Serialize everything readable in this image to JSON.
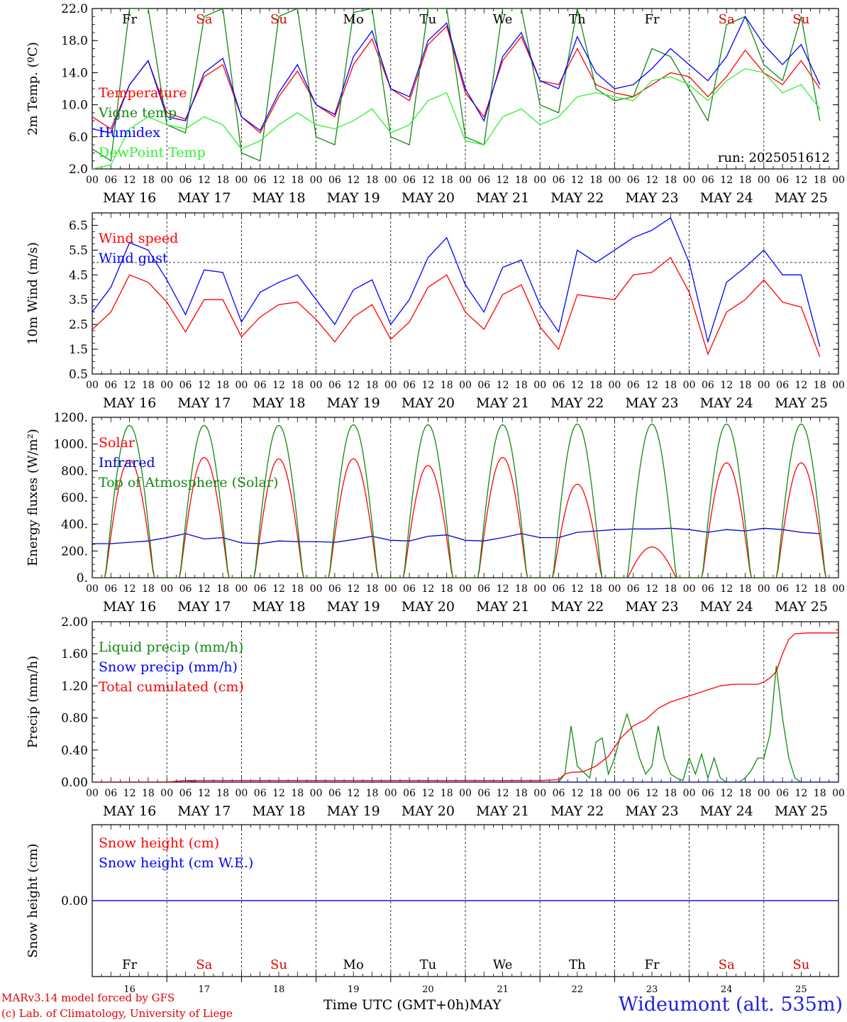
{
  "chart_data": [
    {
      "id": "temp",
      "type": "line",
      "ylabel": "2m Temp. (ºC)",
      "yticks": [
        2.0,
        6.0,
        10.0,
        14.0,
        18.0,
        22.0
      ],
      "ytick_labels": [
        "2.0",
        "6.0",
        "10.0",
        "14.0",
        "18.0",
        "22.0"
      ],
      "ylim": [
        2.0,
        22.0
      ],
      "annotation": "run: 2025051612",
      "day_labels_top": [
        "Fr",
        "Sa",
        "Su",
        "Mo",
        "Tu",
        "We",
        "Th",
        "Fr",
        "Sa",
        "Su"
      ],
      "series": [
        {
          "name": "Temperature",
          "color": "#ff0000",
          "x": [
            0,
            6,
            12,
            18,
            24,
            30,
            36,
            42,
            48,
            54,
            60,
            66,
            72,
            78,
            84,
            90,
            96,
            102,
            108,
            114,
            120,
            126,
            132,
            138,
            144,
            150,
            156,
            162,
            168,
            174,
            180,
            186,
            192,
            198,
            204,
            210,
            216,
            222,
            228,
            234
          ],
          "values": [
            8.5,
            7.0,
            12.5,
            15.5,
            9.0,
            8.2,
            13.5,
            15.0,
            8.5,
            6.5,
            11.0,
            14.2,
            10.0,
            8.5,
            15.0,
            18.2,
            12.0,
            10.5,
            17.5,
            19.8,
            11.5,
            8.5,
            15.5,
            18.5,
            13.0,
            12.5,
            17.0,
            12.5,
            11.5,
            11.0,
            12.5,
            14.0,
            13.5,
            11.0,
            13.5,
            16.8,
            14.0,
            12.5,
            15.5,
            12.0
          ]
        },
        {
          "name": "Vigne temp",
          "color": "#118811",
          "x": [
            0,
            6,
            12,
            18,
            24,
            30,
            36,
            42,
            48,
            54,
            60,
            66,
            72,
            78,
            84,
            90,
            96,
            102,
            108,
            114,
            120,
            126,
            132,
            138,
            144,
            150,
            156,
            162,
            168,
            174,
            180,
            186,
            192,
            198,
            204,
            210,
            216,
            222,
            228,
            234
          ],
          "values": [
            4.5,
            3.0,
            22.0,
            22.0,
            7.5,
            6.5,
            21.0,
            22.0,
            4.0,
            3.0,
            21.0,
            22.0,
            6.0,
            5.0,
            21.5,
            22.0,
            6.0,
            5.0,
            22.0,
            22.0,
            6.0,
            5.0,
            22.0,
            22.0,
            10.0,
            9.0,
            22.0,
            12.0,
            10.5,
            11.0,
            17.0,
            16.0,
            12.0,
            8.0,
            20.0,
            21.0,
            15.0,
            13.0,
            21.0,
            8.0
          ]
        },
        {
          "name": "Humidex",
          "color": "#0000ff",
          "x": [
            0,
            6,
            12,
            18,
            24,
            30,
            36,
            42,
            48,
            54,
            60,
            66,
            72,
            78,
            84,
            90,
            96,
            102,
            108,
            114,
            120,
            126,
            132,
            138,
            144,
            150,
            156,
            162,
            168,
            174,
            180,
            186,
            192,
            198,
            204,
            210,
            216,
            222,
            228,
            234
          ],
          "values": [
            7.0,
            6.5,
            12.5,
            15.5,
            8.5,
            8.0,
            14.0,
            15.8,
            8.5,
            6.8,
            11.5,
            15.0,
            10.0,
            8.8,
            16.0,
            19.2,
            12.0,
            11.0,
            18.0,
            20.2,
            12.0,
            8.0,
            16.0,
            19.0,
            13.0,
            12.0,
            18.5,
            14.0,
            12.0,
            12.5,
            14.5,
            17.0,
            15.0,
            13.0,
            16.0,
            21.0,
            17.5,
            15.0,
            17.5,
            12.5
          ]
        },
        {
          "name": "DewPoint Temp",
          "color": "#33ee33",
          "x": [
            0,
            6,
            12,
            18,
            24,
            30,
            36,
            42,
            48,
            54,
            60,
            66,
            72,
            78,
            84,
            90,
            96,
            102,
            108,
            114,
            120,
            126,
            132,
            138,
            144,
            150,
            156,
            162,
            168,
            174,
            180,
            186,
            192,
            198,
            204,
            210,
            216,
            222,
            228,
            234
          ],
          "values": [
            2.0,
            2.5,
            7.0,
            8.5,
            7.5,
            7.0,
            8.5,
            7.5,
            4.5,
            5.5,
            7.5,
            9.0,
            7.5,
            7.0,
            8.0,
            9.5,
            6.5,
            7.5,
            10.5,
            11.5,
            5.5,
            5.0,
            8.5,
            9.5,
            7.5,
            8.5,
            11.0,
            11.5,
            11.0,
            10.5,
            13.0,
            13.5,
            12.5,
            10.5,
            13.0,
            14.5,
            14.0,
            11.5,
            12.5,
            9.5
          ]
        }
      ]
    },
    {
      "id": "wind",
      "type": "line",
      "ylabel": "10m Wind (m/s)",
      "yticks": [
        0.5,
        1.5,
        2.5,
        3.5,
        4.5,
        5.5,
        6.5
      ],
      "ytick_labels": [
        "0.5",
        "1.5",
        "2.5",
        "3.5",
        "4.5",
        "5.5",
        "6.5"
      ],
      "ylim": [
        0.5,
        7.0
      ],
      "reference_line": 5.0,
      "series": [
        {
          "name": "Wind speed",
          "color": "#ff0000",
          "x": [
            0,
            6,
            12,
            18,
            24,
            30,
            36,
            42,
            48,
            54,
            60,
            66,
            72,
            78,
            84,
            90,
            96,
            102,
            108,
            114,
            120,
            126,
            132,
            138,
            144,
            150,
            156,
            162,
            168,
            174,
            180,
            186,
            192,
            198,
            204,
            210,
            216,
            222,
            228,
            234
          ],
          "values": [
            2.3,
            3.0,
            4.5,
            4.2,
            3.4,
            2.2,
            3.5,
            3.5,
            2.0,
            2.8,
            3.3,
            3.4,
            2.7,
            1.8,
            2.8,
            3.3,
            1.9,
            2.6,
            4.0,
            4.5,
            3.0,
            2.3,
            3.7,
            4.1,
            2.4,
            1.5,
            3.7,
            3.6,
            3.5,
            4.5,
            4.6,
            5.2,
            3.8,
            1.3,
            3.0,
            3.5,
            4.3,
            3.4,
            3.2,
            1.2
          ]
        },
        {
          "name": "Wind gust",
          "color": "#0000ff",
          "x": [
            0,
            6,
            12,
            18,
            24,
            30,
            36,
            42,
            48,
            54,
            60,
            66,
            72,
            78,
            84,
            90,
            96,
            102,
            108,
            114,
            120,
            126,
            132,
            138,
            144,
            150,
            156,
            162,
            168,
            174,
            180,
            186,
            192,
            198,
            204,
            210,
            216,
            222,
            228,
            234
          ],
          "values": [
            3.0,
            4.0,
            5.8,
            5.5,
            4.3,
            2.9,
            4.7,
            4.6,
            2.6,
            3.8,
            4.2,
            4.5,
            3.5,
            2.5,
            3.9,
            4.3,
            2.5,
            3.5,
            5.2,
            6.0,
            4.1,
            3.0,
            4.8,
            5.1,
            3.3,
            2.2,
            5.5,
            5.0,
            5.5,
            6.0,
            6.3,
            6.8,
            5.0,
            1.8,
            4.2,
            4.8,
            5.5,
            4.5,
            4.5,
            1.6
          ]
        }
      ]
    },
    {
      "id": "energy",
      "type": "line",
      "ylabel": "Energy fluxes (W/m²)",
      "yticks": [
        0,
        200,
        400,
        600,
        800,
        1000,
        1200
      ],
      "ytick_labels": [
        "0.",
        "200.",
        "400.",
        "600.",
        "800.",
        "1000.",
        "1200."
      ],
      "ylim": [
        0,
        1200
      ],
      "series": [
        {
          "name": "Solar",
          "color": "#ff0000",
          "daily_peak": [
            880,
            900,
            890,
            890,
            840,
            900,
            700,
            230,
            860,
            860
          ]
        },
        {
          "name": "Infrared",
          "color": "#0000cc",
          "x": [
            0,
            6,
            12,
            18,
            24,
            30,
            36,
            42,
            48,
            54,
            60,
            66,
            72,
            78,
            84,
            90,
            96,
            102,
            108,
            114,
            120,
            126,
            132,
            138,
            144,
            150,
            156,
            162,
            168,
            174,
            180,
            186,
            192,
            198,
            204,
            210,
            216,
            222,
            228,
            234
          ],
          "values": [
            255,
            255,
            265,
            275,
            300,
            330,
            290,
            300,
            260,
            255,
            275,
            270,
            270,
            265,
            285,
            310,
            280,
            275,
            310,
            320,
            280,
            275,
            300,
            330,
            300,
            300,
            340,
            350,
            360,
            365,
            365,
            370,
            360,
            340,
            360,
            350,
            370,
            360,
            340,
            330
          ]
        },
        {
          "name": "Top of Atmosphere (Solar)",
          "color": "#118811",
          "daily_peak": [
            1140,
            1140,
            1140,
            1145,
            1145,
            1145,
            1150,
            1150,
            1150,
            1150
          ]
        }
      ]
    },
    {
      "id": "precip",
      "type": "line",
      "ylabel": "Precip (mm/h)",
      "yticks": [
        0,
        0.4,
        0.8,
        1.2,
        1.6,
        2.0
      ],
      "ytick_labels": [
        "0.00",
        "0.40",
        "0.80",
        "1.20",
        "1.60",
        "2.00"
      ],
      "ylim": [
        0,
        2.0
      ],
      "series": [
        {
          "name": "Liquid precip (mm/h)",
          "color": "#118811",
          "x": [
            0,
            24,
            30,
            34,
            48,
            144,
            150,
            152,
            154,
            156,
            160,
            162,
            164,
            166,
            168,
            170,
            172,
            174,
            176,
            178,
            180,
            182,
            184,
            186,
            188,
            190,
            192,
            194,
            196,
            198,
            200,
            202,
            204,
            206,
            208,
            210,
            212,
            214,
            216,
            218,
            220,
            222,
            224,
            226,
            228,
            230,
            240
          ],
          "values": [
            0,
            0,
            0.02,
            0,
            0,
            0,
            0,
            0.1,
            0.7,
            0.2,
            0.05,
            0.5,
            0.55,
            0.1,
            0.3,
            0.6,
            0.85,
            0.6,
            0.3,
            0.1,
            0.2,
            0.7,
            0.3,
            0.1,
            0.05,
            0.02,
            0.3,
            0.1,
            0.35,
            0.05,
            0.3,
            0.05,
            0,
            0,
            0,
            0.05,
            0.15,
            0.3,
            0.3,
            0.6,
            1.45,
            0.8,
            0.3,
            0.05,
            0,
            0,
            0
          ]
        },
        {
          "name": "Snow precip (mm/h)",
          "color": "#0000ff",
          "x": [
            0,
            240
          ],
          "values": [
            0,
            0
          ]
        },
        {
          "name": "Total cumulated (cm)",
          "color": "#ff0000",
          "x": [
            0,
            24,
            30,
            36,
            48,
            144,
            150,
            152,
            154,
            158,
            162,
            166,
            170,
            174,
            178,
            182,
            186,
            190,
            194,
            198,
            202,
            206,
            210,
            214,
            216,
            218,
            220,
            222,
            224,
            226,
            230,
            240
          ],
          "values": [
            0,
            0,
            0.02,
            0.02,
            0.02,
            0.02,
            0.03,
            0.1,
            0.12,
            0.13,
            0.2,
            0.32,
            0.55,
            0.7,
            0.78,
            0.92,
            1.0,
            1.05,
            1.1,
            1.15,
            1.2,
            1.22,
            1.22,
            1.22,
            1.25,
            1.3,
            1.38,
            1.6,
            1.78,
            1.85,
            1.86,
            1.86
          ]
        }
      ]
    },
    {
      "id": "snow",
      "type": "line",
      "ylabel": "Snow height (cm)",
      "yticks": [
        0
      ],
      "ytick_labels": [
        "0.00"
      ],
      "ylim": [
        -1,
        1
      ],
      "series": [
        {
          "name": "Snow height (cm)",
          "color": "#ff0000",
          "x": [
            0,
            240
          ],
          "values": [
            0,
            0
          ]
        },
        {
          "name": "Snow height (cm W.E.)",
          "color": "#0000ff",
          "x": [
            0,
            240
          ],
          "values": [
            0,
            0
          ]
        }
      ],
      "day_labels_bottom": [
        "Fr",
        "Sa",
        "Su",
        "Mo",
        "Tu",
        "We",
        "Th",
        "Fr",
        "Sa",
        "Su"
      ],
      "day_numbers": [
        "16",
        "17",
        "18",
        "19",
        "20",
        "21",
        "22",
        "23",
        "24",
        "25"
      ]
    }
  ],
  "x_axis": {
    "hour_labels": [
      "00",
      "06",
      "12",
      "18"
    ],
    "final_label": "00",
    "date_labels": [
      "MAY 16",
      "MAY 17",
      "MAY 18",
      "MAY 19",
      "MAY 20",
      "MAY 21",
      "MAY 22",
      "MAY 23",
      "MAY 24",
      "MAY 25"
    ],
    "weekend_color": "#e00000",
    "weekday_color": "#000000",
    "weekend_days": [
      "Sa",
      "Su"
    ]
  },
  "footer": {
    "credit1": "MARv3.14 model forced by GFS",
    "credit2": "(c) Lab. of Climatology, University of Liege",
    "xtitle": "Time UTC (GMT+0h)MAY",
    "station": "Wideumont (alt. 535m)"
  }
}
